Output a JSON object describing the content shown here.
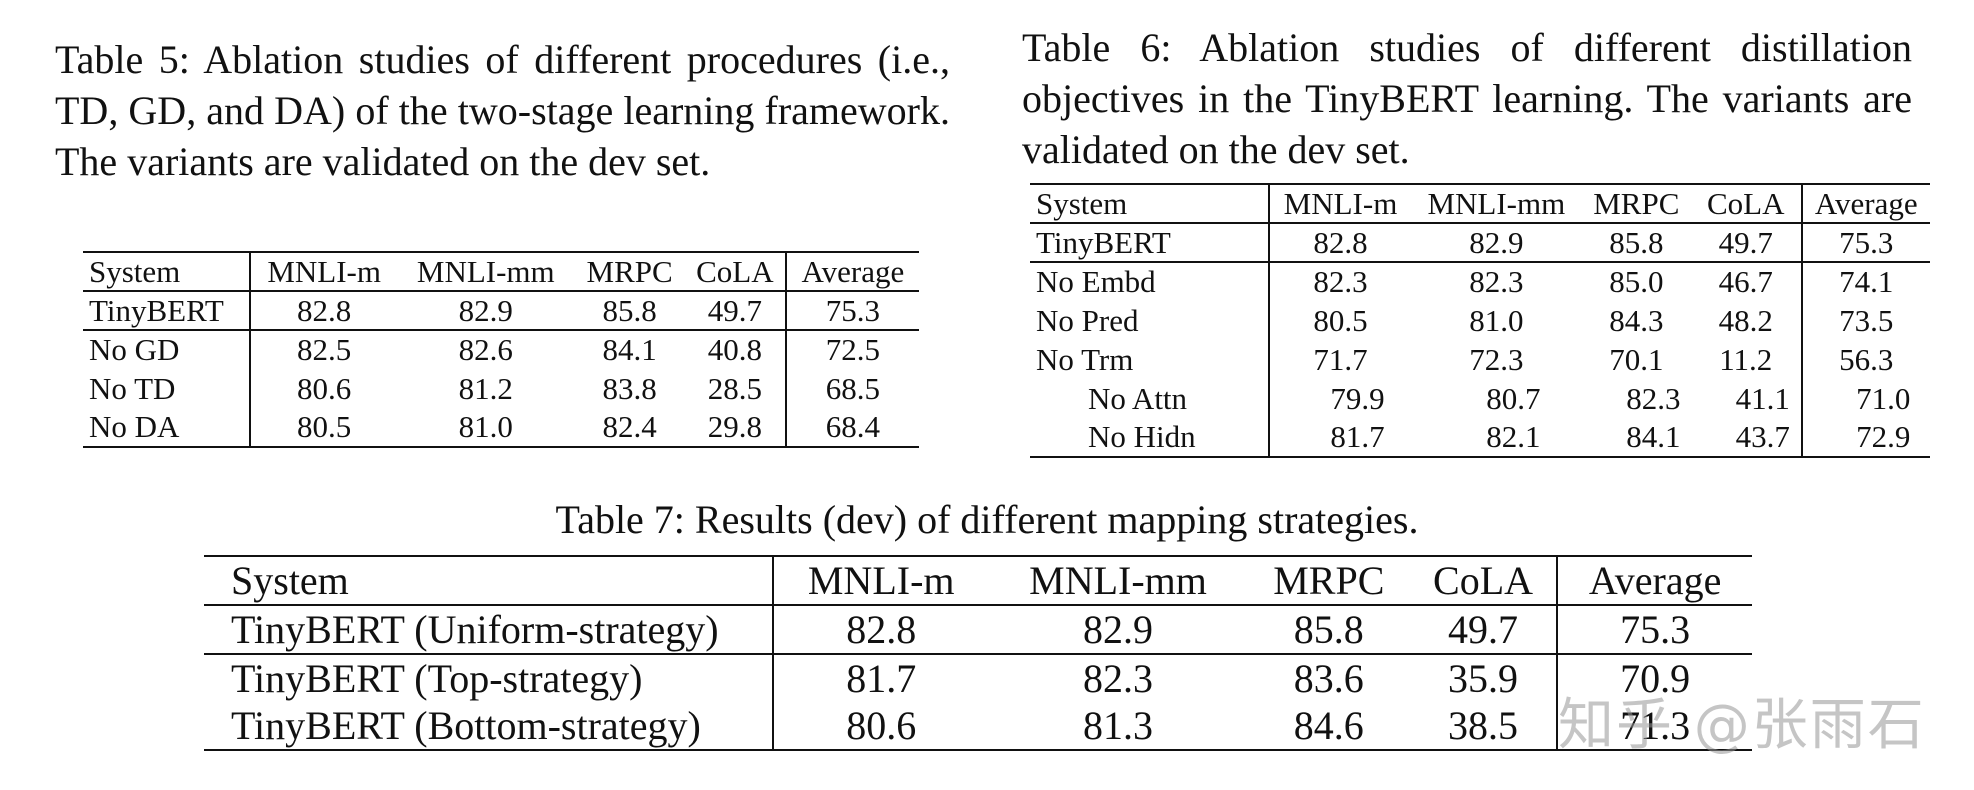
{
  "table5": {
    "caption": "Table 5:  Ablation studies of different procedures (i.e., TD, GD, and DA) of the two-stage learning framework.  The variants are validated on the dev set.",
    "headers": [
      "System",
      "MNLI-m",
      "MNLI-mm",
      "MRPC",
      "CoLA",
      "Average"
    ],
    "rows": [
      [
        "TinyBERT",
        "82.8",
        "82.9",
        "85.8",
        "49.7",
        "75.3"
      ],
      [
        "No GD",
        "82.5",
        "82.6",
        "84.1",
        "40.8",
        "72.5"
      ],
      [
        "No TD",
        "80.6",
        "81.2",
        "83.8",
        "28.5",
        "68.5"
      ],
      [
        "No DA",
        "80.5",
        "81.0",
        "82.4",
        "29.8",
        "68.4"
      ]
    ]
  },
  "table6": {
    "caption": "Table 6:  Ablation studies of different distillation objectives in the TinyBERT learning.  The variants are validated on the dev set.",
    "headers": [
      "System",
      "MNLI-m",
      "MNLI-mm",
      "MRPC",
      "CoLA",
      "Average"
    ],
    "rows": [
      [
        "TinyBERT",
        "82.8",
        "82.9",
        "85.8",
        "49.7",
        "75.3"
      ],
      [
        "No Embd",
        "82.3",
        "82.3",
        "85.0",
        "46.7",
        "74.1"
      ],
      [
        "No Pred",
        "80.5",
        "81.0",
        "84.3",
        "48.2",
        "73.5"
      ],
      [
        "No Trm",
        "71.7",
        "72.3",
        "70.1",
        "11.2",
        "56.3"
      ],
      [
        "No Attn",
        "79.9",
        "80.7",
        "82.3",
        "41.1",
        "71.0"
      ],
      [
        "No Hidn",
        "81.7",
        "82.1",
        "84.1",
        "43.7",
        "72.9"
      ]
    ]
  },
  "table7": {
    "caption": "Table 7: Results (dev) of different mapping strategies.",
    "headers": [
      "System",
      "MNLI-m",
      "MNLI-mm",
      "MRPC",
      "CoLA",
      "Average"
    ],
    "rows": [
      [
        "TinyBERT (Uniform-strategy)",
        "82.8",
        "82.9",
        "85.8",
        "49.7",
        "75.3"
      ],
      [
        "TinyBERT (Top-strategy)",
        "81.7",
        "82.3",
        "83.6",
        "35.9",
        "70.9"
      ],
      [
        "TinyBERT (Bottom-strategy)",
        "80.6",
        "81.3",
        "84.6",
        "38.5",
        "71.3"
      ]
    ]
  },
  "watermark": "知乎 @张雨石"
}
